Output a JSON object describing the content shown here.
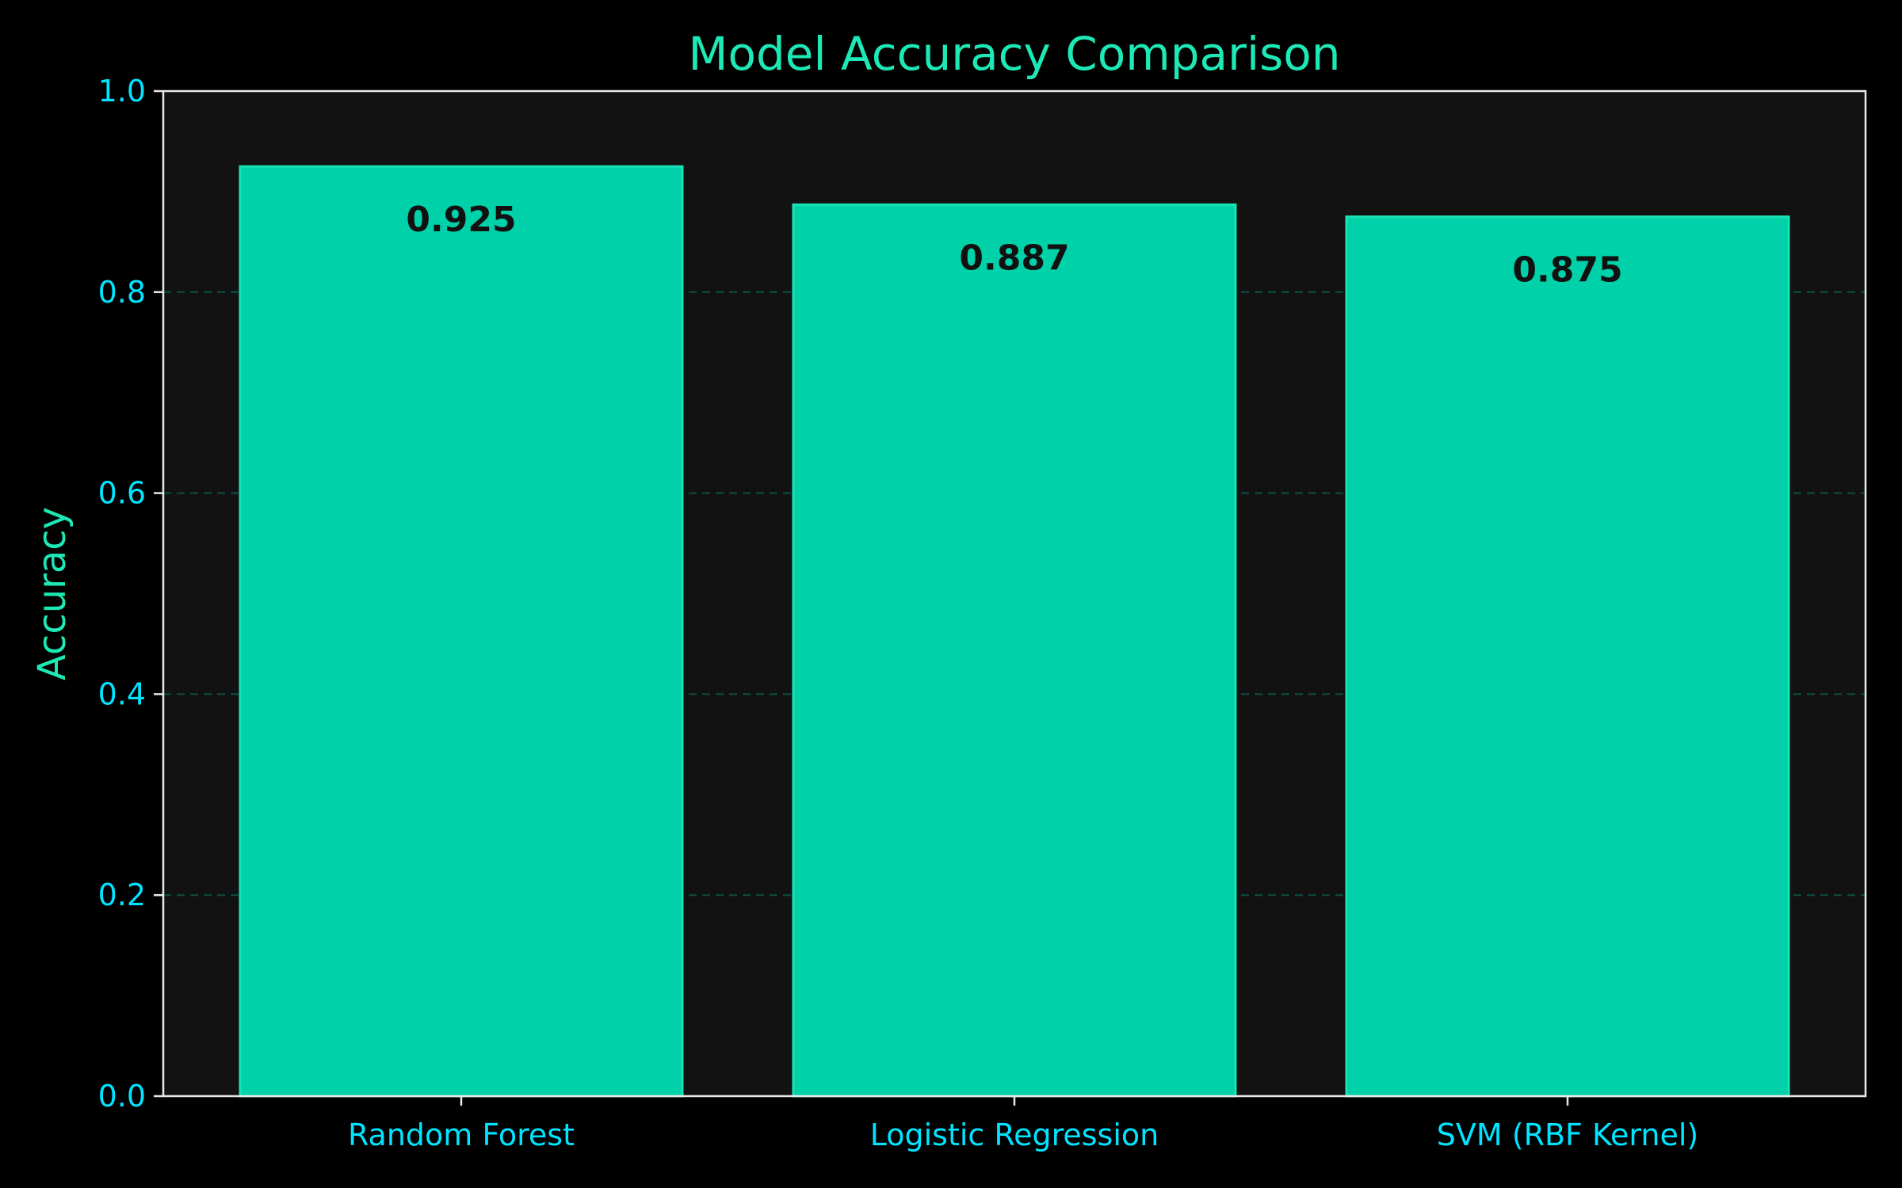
{
  "colors": {
    "background": "#000000",
    "plot_background": "#121212",
    "bar_fill": "#00D1A8",
    "bar_edge": "#19E3B5",
    "title": "#1DE9B6",
    "ylabel": "#1DE9B6",
    "tick_label": "#00E5FF",
    "grid": "#00C9A7",
    "spine": "#E8E8E8",
    "bar_value_text": "#111111"
  },
  "chart_data": {
    "type": "bar",
    "title": "Model Accuracy Comparison",
    "xlabel": "",
    "ylabel": "Accuracy",
    "categories": [
      "Random Forest",
      "Logistic Regression",
      "SVM (RBF Kernel)"
    ],
    "values": [
      0.925,
      0.887,
      0.875
    ],
    "value_labels": [
      "0.925",
      "0.887",
      "0.875"
    ],
    "ylim": [
      0,
      1.0
    ],
    "yticks": [
      0.0,
      0.2,
      0.4,
      0.6,
      0.8,
      1.0
    ],
    "ytick_labels": [
      "0.0",
      "0.2",
      "0.4",
      "0.6",
      "0.8",
      "1.0"
    ],
    "grid": "y-axis dashed",
    "legend": "none"
  }
}
